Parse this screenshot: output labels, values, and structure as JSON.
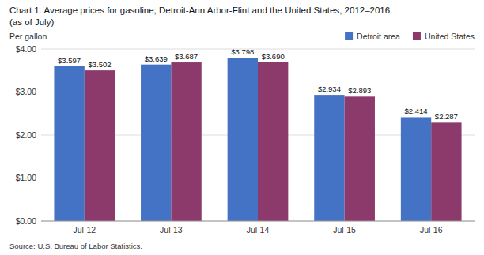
{
  "chart_data": {
    "type": "bar",
    "title": "Chart 1. Average prices for gasoline, Detroit-Ann Arbor-Flint and the United States, 2012–2016",
    "subtitle": "(as of July)",
    "ylabel": "Per gallon",
    "source": "Source: U.S. Bureau of Labor Statistics.",
    "categories": [
      "Jul-12",
      "Jul-13",
      "Jul-14",
      "Jul-15",
      "Jul-16"
    ],
    "series": [
      {
        "name": "Detroit area",
        "color": "#4472C4",
        "values": [
          3.597,
          3.639,
          3.798,
          2.934,
          2.414
        ],
        "value_labels": [
          "$3.597",
          "$3.639",
          "$3.798",
          "$2.934",
          "$2.414"
        ]
      },
      {
        "name": "United States",
        "color": "#8B3A6B",
        "values": [
          3.502,
          3.687,
          3.69,
          2.893,
          2.287
        ],
        "value_labels": [
          "$3.502",
          "$3.687",
          "$3.690",
          "$2.893",
          "$2.287"
        ]
      }
    ],
    "ylim": [
      0,
      4.0
    ],
    "yticks": [
      {
        "value": 0.0,
        "label": "$0.00"
      },
      {
        "value": 1.0,
        "label": "$1.00"
      },
      {
        "value": 2.0,
        "label": "$2.00"
      },
      {
        "value": 3.0,
        "label": "$3.00"
      },
      {
        "value": 4.0,
        "label": "$4.00"
      }
    ],
    "grid": true,
    "legend": "upper right",
    "data_labels": true
  }
}
